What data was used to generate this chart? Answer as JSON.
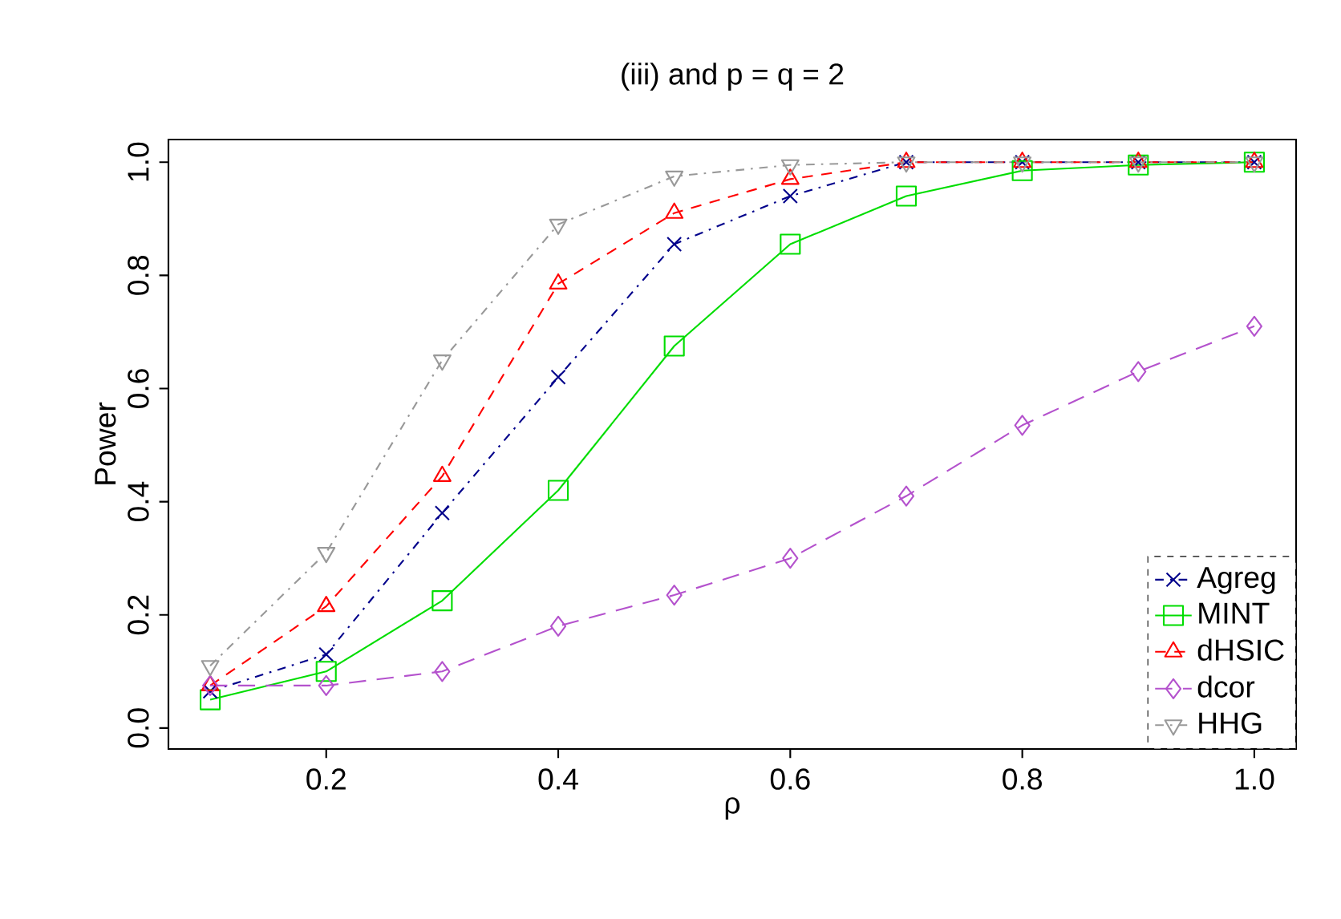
{
  "chart_data": {
    "type": "line",
    "title": "(iii) and p = q = 2",
    "xlabel": "ρ",
    "ylabel": "Power",
    "x": [
      0.1,
      0.2,
      0.3,
      0.4,
      0.5,
      0.6,
      0.7,
      0.8,
      0.9,
      1.0
    ],
    "xlim": [
      0.064,
      1.036
    ],
    "ylim": [
      -0.037,
      1.04
    ],
    "xticks": [
      0.2,
      0.4,
      0.6,
      {
        "value": 0.8,
        "label": "0.8"
      },
      {
        "value": 1.0,
        "label": "1.0"
      }
    ],
    "yticks": [
      {
        "value": 0,
        "label": "0.0"
      },
      {
        "value": 0.2,
        "label": "0.2"
      },
      {
        "value": 0.4,
        "label": "0.4"
      },
      {
        "value": 0.6,
        "label": "0.6"
      },
      {
        "value": 0.8,
        "label": "0.8"
      },
      {
        "value": 1.0,
        "label": "1.0"
      }
    ],
    "grid": false,
    "legend": "bottom right",
    "series": [
      {
        "name": "Agreg",
        "color": "#00008b",
        "marker": "cross",
        "line_style": "dashdot",
        "values": [
          0.065,
          0.13,
          0.38,
          0.62,
          0.855,
          0.94,
          1.0,
          1.0,
          1.0,
          1.0
        ]
      },
      {
        "name": "MINT",
        "color": "#00dd00",
        "marker": "square",
        "line_style": "solid",
        "values": [
          0.05,
          0.1,
          0.225,
          0.42,
          0.675,
          0.855,
          0.94,
          0.985,
          0.995,
          1.0
        ]
      },
      {
        "name": "dHSIC",
        "color": "#ff0000",
        "marker": "triangle",
        "line_style": "dashed",
        "values": [
          0.075,
          0.215,
          0.445,
          0.785,
          0.91,
          0.97,
          1.0,
          1.0,
          1.0,
          1.0
        ]
      },
      {
        "name": "dcor",
        "color": "#b452cd",
        "marker": "diamond",
        "line_style": "longdash",
        "values": [
          0.075,
          0.075,
          0.1,
          0.18,
          0.235,
          0.3,
          0.41,
          0.535,
          0.63,
          0.71
        ]
      },
      {
        "name": "HHG",
        "color": "#999999",
        "marker": "triangle_down",
        "line_style": "dashdot",
        "values": [
          0.11,
          0.31,
          0.65,
          0.89,
          0.975,
          0.995,
          1.0,
          1.0,
          1.0,
          1.0
        ]
      }
    ]
  }
}
